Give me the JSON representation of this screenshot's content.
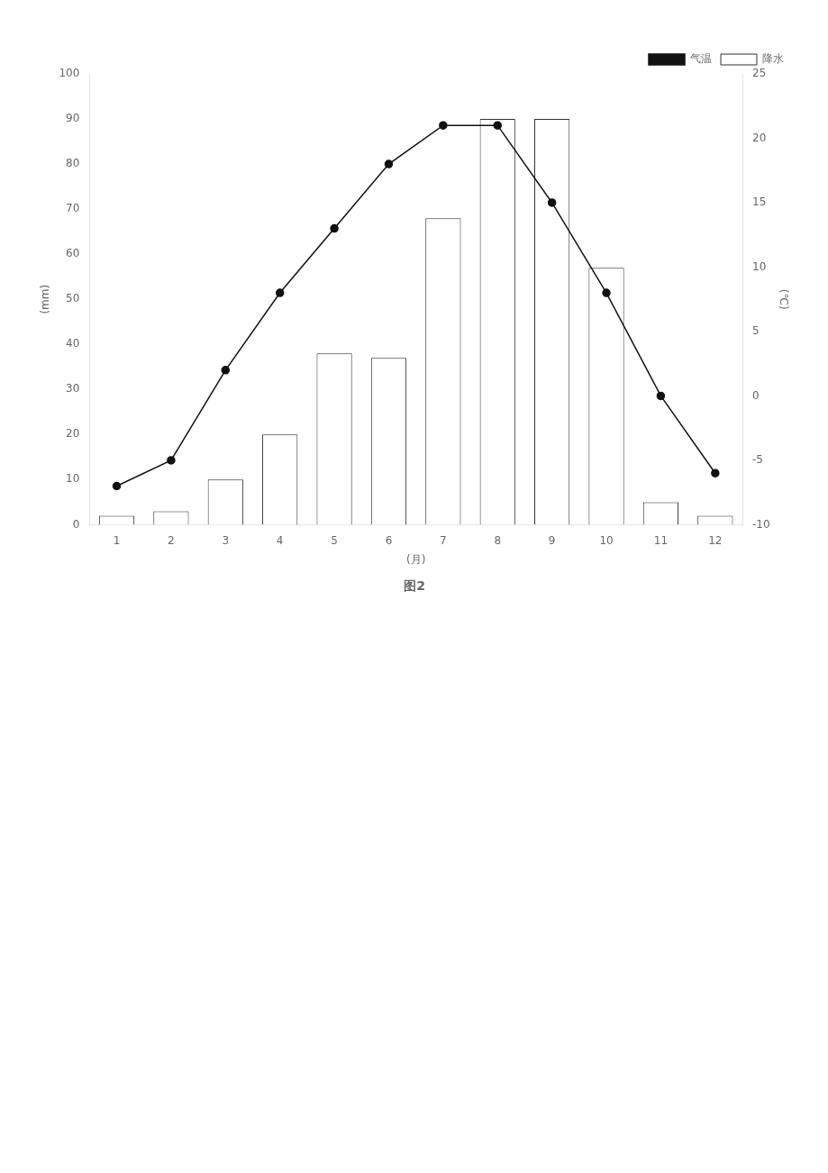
{
  "chart_data": {
    "type": "bar",
    "title": "图2",
    "categories": [
      1,
      2,
      3,
      4,
      5,
      6,
      7,
      8,
      9,
      10,
      11,
      12
    ],
    "series": [
      {
        "name": "降水",
        "type": "bar",
        "color": "white",
        "values": [
          2,
          3,
          10,
          20,
          38,
          37,
          68,
          90,
          90,
          57,
          5,
          2
        ]
      },
      {
        "name": "气温",
        "type": "line",
        "color": "#111111",
        "marker": "circle",
        "axis": "y2",
        "values": [
          -7,
          -5,
          2,
          8,
          13,
          18,
          21,
          21,
          15,
          8,
          0,
          -6
        ]
      }
    ],
    "xlabel": "(月)",
    "ylabel": "(mm)",
    "y2label": "(℃)",
    "ylim": [
      0,
      100
    ],
    "yticks": [
      0,
      10,
      20,
      30,
      40,
      50,
      60,
      70,
      80,
      90,
      100
    ],
    "y2lim": [
      -10,
      25
    ],
    "y2ticks": [
      -10,
      -5,
      0,
      5,
      10,
      15,
      20,
      25
    ],
    "grid": false,
    "legend": "upper right"
  }
}
